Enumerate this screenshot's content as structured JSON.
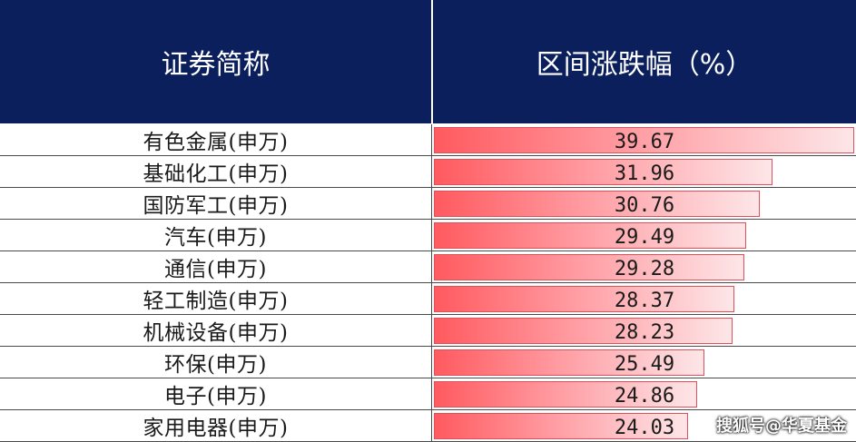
{
  "chart_data": {
    "type": "bar",
    "column_headers": [
      "证券简称",
      "区间涨跌幅（%）"
    ],
    "categories": [
      "有色金属(申万)",
      "基础化工(申万)",
      "国防军工(申万)",
      "汽车(申万)",
      "通信(申万)",
      "轻工制造(申万)",
      "机械设备(申万)",
      "环保(申万)",
      "电子(申万)",
      "家用电器(申万)"
    ],
    "values": [
      39.67,
      31.96,
      30.76,
      29.49,
      29.28,
      28.37,
      28.23,
      25.49,
      24.86,
      24.03
    ],
    "value_labels": [
      "39.67",
      "31.96",
      "30.76",
      "29.49",
      "29.28",
      "28.37",
      "28.23",
      "25.49",
      "24.86",
      "24.03"
    ],
    "xlim": [
      0,
      39.67
    ]
  },
  "watermark": "搜狐号@华夏基金",
  "colors": {
    "header_bg": "#0b1f5c",
    "bar_start": "#ff5a5f",
    "bar_end": "#fde6e8"
  }
}
